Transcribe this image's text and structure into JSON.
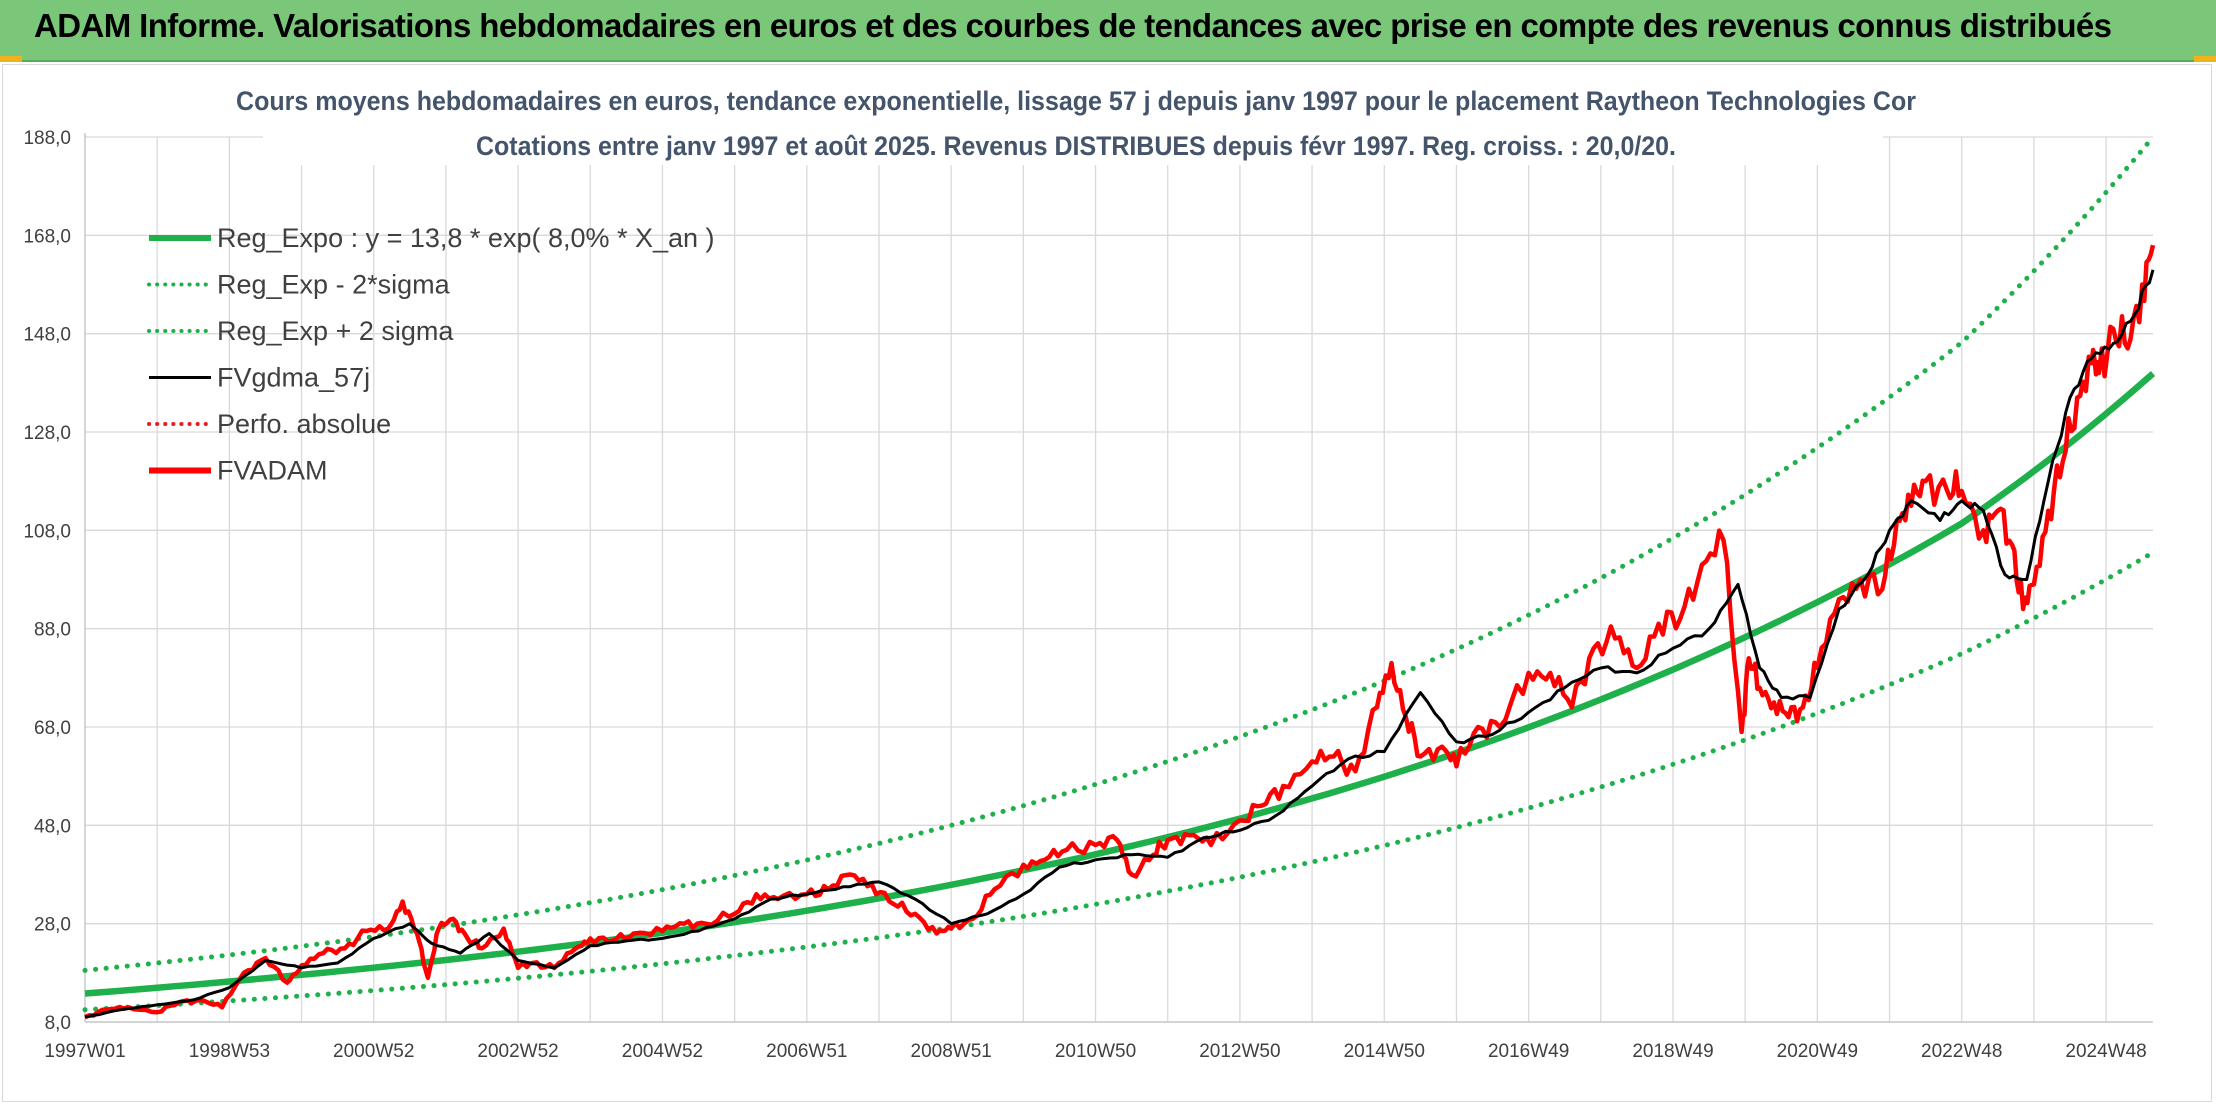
{
  "banner": {
    "title": "ADAM Informe. Valorisations hebdomadaires en euros et des courbes de tendances avec prise en compte des revenus connus distribués"
  },
  "chart_data": {
    "type": "line",
    "title": "Cours moyens hebdomadaires en euros, tendance exponentielle, lissage 57 j depuis janv 1997 pour le placement Raytheon Technologies Cor",
    "subtitle": "Cotations entre janv 1997 et août 2025. Revenus DISTRIBUES depuis févr 1997. Reg. croiss. : 20,0/20.",
    "xlabel": "",
    "ylabel": "",
    "ylim": [
      8,
      188
    ],
    "xlim": [
      1997.0,
      2025.65
    ],
    "y_ticks": [
      "188,0",
      "168,0",
      "148,0",
      "128,0",
      "108,0",
      "88,0",
      "68,0",
      "48,0",
      "28,0",
      "8,0"
    ],
    "y_tick_values": [
      188,
      168,
      148,
      128,
      108,
      88,
      68,
      48,
      28,
      8
    ],
    "x_tick_labels": [
      "1997W01",
      "1998W53",
      "2000W52",
      "2002W52",
      "2004W52",
      "2006W51",
      "2008W51",
      "2010W50",
      "2012W50",
      "2014W50",
      "2016W49",
      "2018W49",
      "2020W49",
      "2022W48",
      "2024W48"
    ],
    "x_tick_values": [
      1997.0,
      1999.0,
      2001.0,
      2003.0,
      2005.0,
      2007.0,
      2009.0,
      2011.0,
      2013.0,
      2015.0,
      2017.0,
      2019.0,
      2021.0,
      2023.0,
      2025.0
    ],
    "grid": true,
    "legend_position": "top-left",
    "series": [
      {
        "name": "Reg_Expo : y = 13,8 * exp( 8,0% *  X_an )",
        "color": "#1eb04b",
        "style": "solid-thick",
        "x": [
          1997.0,
          2000.0,
          2003.0,
          2006.0,
          2009.0,
          2012.0,
          2015.0,
          2018.0,
          2021.0,
          2023.0,
          2025.65
        ],
        "values": [
          13.8,
          17.6,
          22.3,
          28.3,
          35.9,
          45.6,
          57.9,
          73.6,
          93.4,
          109.4,
          139.9
        ]
      },
      {
        "name": "Reg_Exp - 2*sigma",
        "color": "#1eb04b",
        "style": "dotted",
        "x": [
          1997.0,
          2000.0,
          2003.0,
          2006.0,
          2009.0,
          2012.0,
          2015.0,
          2018.0,
          2021.0,
          2023.0,
          2025.65
        ],
        "values": [
          10.5,
          13.3,
          16.9,
          21.5,
          27.2,
          34.6,
          43.9,
          55.8,
          70.8,
          82.9,
          103.5
        ]
      },
      {
        "name": "Reg_Exp + 2 sigma",
        "color": "#1eb04b",
        "style": "dotted",
        "x": [
          1997.0,
          2000.0,
          2003.0,
          2006.0,
          2009.0,
          2012.0,
          2015.0,
          2018.0,
          2021.0,
          2023.0,
          2025.65
        ],
        "values": [
          18.5,
          23.4,
          29.8,
          37.8,
          48.0,
          61.0,
          77.4,
          98.3,
          124.8,
          146.2,
          188.0
        ]
      },
      {
        "name": "FVgdma_57j",
        "color": "#000000",
        "style": "solid",
        "x": [
          1997.0,
          1997.5,
          1998.0,
          1998.5,
          1999.0,
          1999.5,
          2000.0,
          2000.5,
          2001.0,
          2001.5,
          2001.8,
          2002.2,
          2002.6,
          2003.0,
          2003.5,
          2004.0,
          2004.5,
          2005.0,
          2005.5,
          2006.0,
          2006.5,
          2007.0,
          2007.5,
          2008.0,
          2008.5,
          2009.0,
          2009.5,
          2010.0,
          2010.5,
          2011.0,
          2011.5,
          2012.0,
          2012.5,
          2013.0,
          2013.5,
          2014.0,
          2014.5,
          2015.0,
          2015.5,
          2016.0,
          2016.5,
          2017.0,
          2017.5,
          2018.0,
          2018.5,
          2019.0,
          2019.5,
          2019.9,
          2020.2,
          2020.5,
          2020.9,
          2021.3,
          2021.7,
          2022.0,
          2022.3,
          2022.7,
          2023.0,
          2023.3,
          2023.6,
          2023.9,
          2024.2,
          2024.5,
          2024.8,
          2025.1,
          2025.4,
          2025.65
        ],
        "values": [
          9.0,
          10.5,
          11.5,
          12.5,
          15.0,
          20.5,
          19.0,
          20.0,
          25.0,
          28.0,
          24.0,
          22.0,
          26.0,
          20.5,
          19.0,
          23.5,
          24.5,
          25.0,
          26.5,
          29.0,
          33.0,
          34.0,
          35.5,
          36.5,
          33.0,
          28.0,
          30.0,
          34.0,
          39.5,
          41.0,
          42.0,
          41.5,
          45.5,
          47.0,
          50.0,
          56.0,
          61.5,
          63.0,
          75.0,
          65.0,
          66.5,
          71.0,
          76.0,
          80.0,
          79.0,
          84.0,
          88.0,
          97.0,
          80.0,
          74.0,
          74.0,
          92.0,
          99.0,
          108.0,
          114.0,
          110.0,
          114.0,
          112.0,
          99.0,
          98.0,
          118.0,
          135.0,
          143.0,
          146.0,
          152.0,
          161.0
        ]
      },
      {
        "name": "Perfo. absolue",
        "color": "#e81d1d",
        "style": "dotted",
        "x": [],
        "values": []
      },
      {
        "name": "FVADAM",
        "color": "#ff0000",
        "style": "solid-thick",
        "x": [
          1997.0,
          1997.3,
          1997.6,
          1998.0,
          1998.3,
          1998.6,
          1998.9,
          1999.2,
          1999.5,
          1999.8,
          2000.0,
          2000.3,
          2000.6,
          2000.9,
          2001.2,
          2001.4,
          2001.6,
          2001.75,
          2001.9,
          2002.1,
          2002.3,
          2002.5,
          2002.8,
          2003.0,
          2003.2,
          2003.5,
          2003.8,
          2004.0,
          2004.3,
          2004.6,
          2005.0,
          2005.3,
          2005.6,
          2006.0,
          2006.3,
          2006.6,
          2007.0,
          2007.3,
          2007.6,
          2007.9,
          2008.2,
          2008.5,
          2008.8,
          2009.0,
          2009.3,
          2009.6,
          2010.0,
          2010.3,
          2010.6,
          2011.0,
          2011.3,
          2011.5,
          2011.8,
          2012.0,
          2012.3,
          2012.6,
          2013.0,
          2013.3,
          2013.6,
          2014.0,
          2014.3,
          2014.6,
          2014.9,
          2015.1,
          2015.3,
          2015.5,
          2015.8,
          2016.0,
          2016.3,
          2016.6,
          2017.0,
          2017.3,
          2017.6,
          2017.9,
          2018.2,
          2018.5,
          2018.8,
          2019.1,
          2019.4,
          2019.7,
          2019.95,
          2020.05,
          2020.2,
          2020.4,
          2020.6,
          2020.8,
          2021.0,
          2021.3,
          2021.6,
          2021.9,
          2022.1,
          2022.3,
          2022.5,
          2022.8,
          2023.0,
          2023.3,
          2023.5,
          2023.7,
          2023.85,
          2024.0,
          2024.2,
          2024.4,
          2024.6,
          2024.8,
          2024.9,
          2025.1,
          2025.3,
          2025.5,
          2025.65
        ],
        "values": [
          9.0,
          10.5,
          11.0,
          10.0,
          12.0,
          12.5,
          11.0,
          18.0,
          21.0,
          16.0,
          19.5,
          22.0,
          23.0,
          26.5,
          27.0,
          32.5,
          26.0,
          17.0,
          27.0,
          29.0,
          25.0,
          23.0,
          27.0,
          19.0,
          20.0,
          19.0,
          23.0,
          25.0,
          24.5,
          26.0,
          26.5,
          28.0,
          28.0,
          30.0,
          34.0,
          33.0,
          34.0,
          35.0,
          38.0,
          36.0,
          32.0,
          30.0,
          26.0,
          27.0,
          29.0,
          35.0,
          40.0,
          41.0,
          43.0,
          44.0,
          45.0,
          38.0,
          42.0,
          45.0,
          46.0,
          44.0,
          49.0,
          52.0,
          56.0,
          61.0,
          62.0,
          59.0,
          72.0,
          81.0,
          70.0,
          62.0,
          64.0,
          60.0,
          68.0,
          68.0,
          79.0,
          79.0,
          72.0,
          84.0,
          86.0,
          80.0,
          89.0,
          90.0,
          101.0,
          106.0,
          67.0,
          82.0,
          76.0,
          73.0,
          70.0,
          72.0,
          80.0,
          94.0,
          98.0,
          96.0,
          110.0,
          113.0,
          118.0,
          116.0,
          116.0,
          108.0,
          112.0,
          105.0,
          92.0,
          97.0,
          112.0,
          122.0,
          135.0,
          142.0,
          140.0,
          149.0,
          145.0,
          158.0,
          166.0
        ]
      }
    ]
  }
}
